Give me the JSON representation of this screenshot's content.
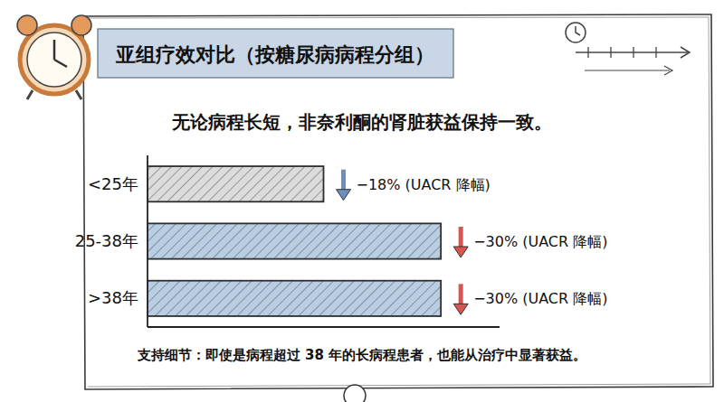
{
  "chart_data": {
    "type": "bar",
    "orientation": "horizontal",
    "title": "亚组疗效对比（按糖尿病病程分组）",
    "subtitle": "无论病程长短，非奈利酮的肾脏获益保持一致。",
    "annotation": "支持细节：即使是病程超过 38 年的长病程患者，也能从治疗中显著获益。",
    "categories": [
      "<25年",
      "25-38年",
      ">38年"
    ],
    "values": [
      -18,
      -30,
      -30
    ],
    "value_labels": [
      "−18% (UACR 降幅)",
      "−30% (UACR 降幅)",
      "−30% (UACR 降幅)"
    ],
    "xlim": [
      0,
      -36
    ],
    "colors": [
      "#dcdcdc",
      "#b9cee3",
      "#b9cee3"
    ],
    "data_labels": true,
    "tick_labels": "y",
    "grid": false
  }
}
